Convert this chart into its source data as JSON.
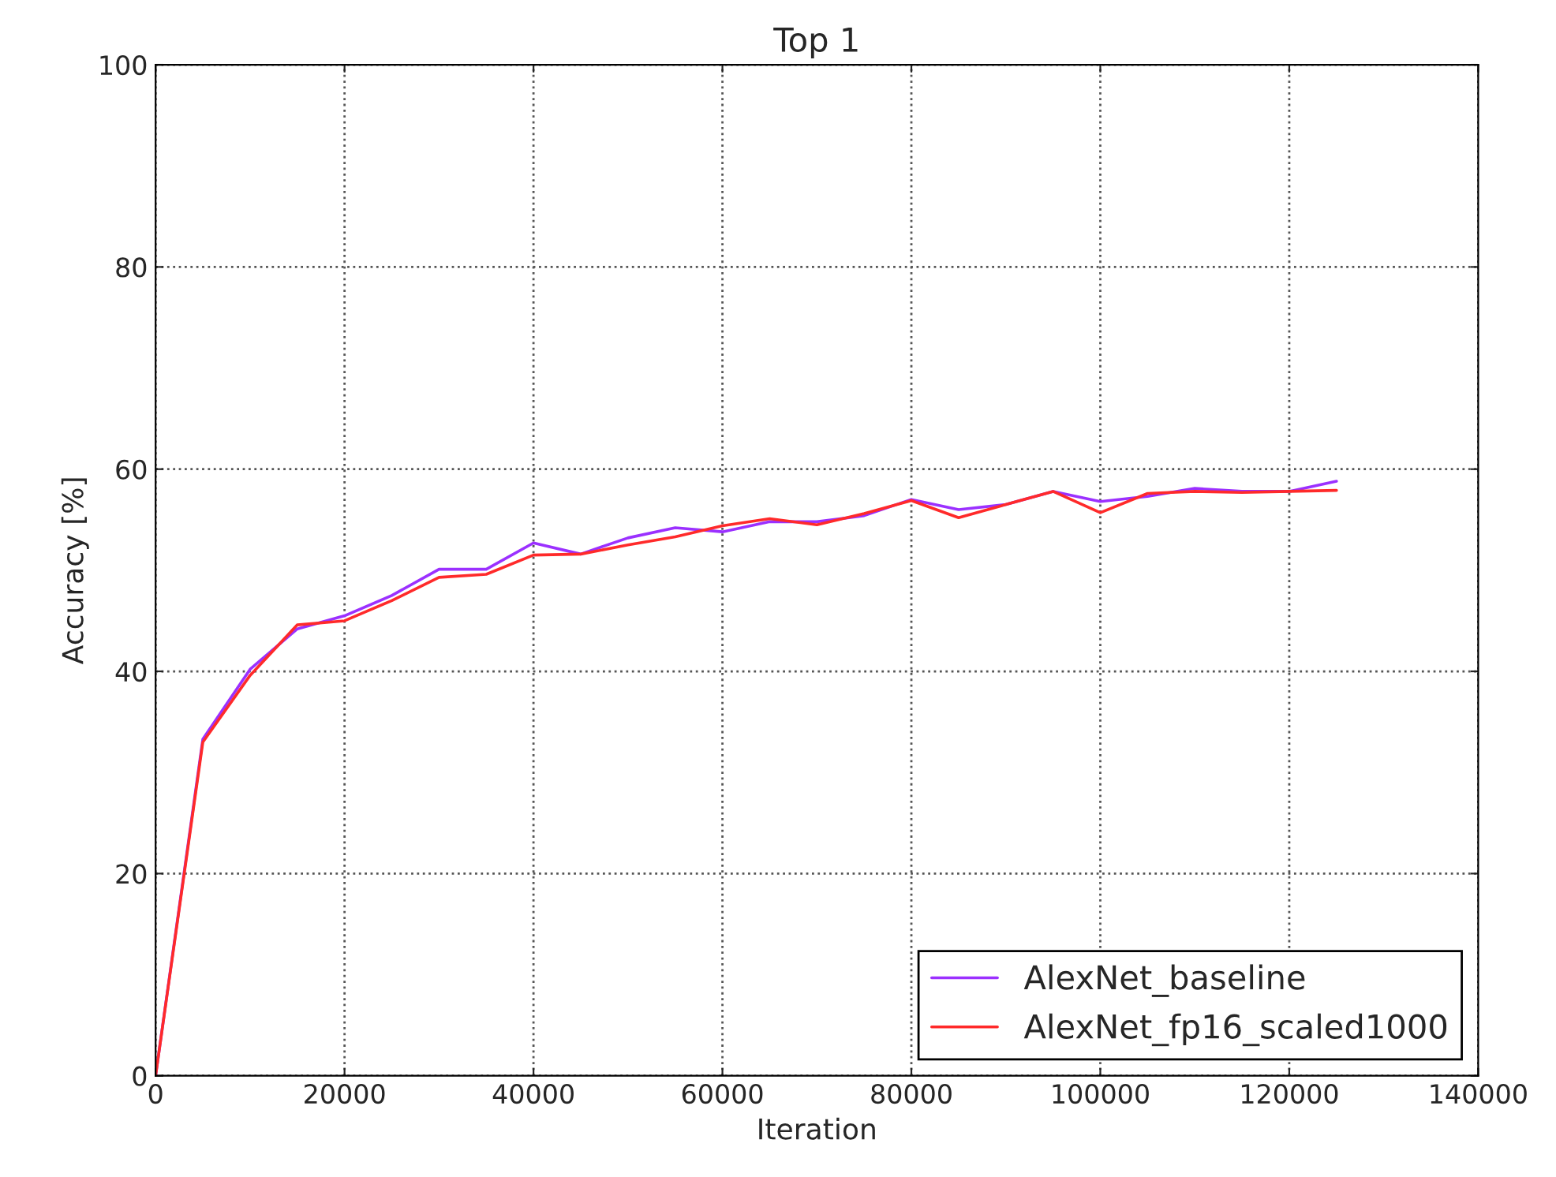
{
  "chart_data": {
    "type": "line",
    "title": "Top 1",
    "xlabel": "Iteration",
    "ylabel": "Accuracy [%]",
    "x": [
      0,
      5000,
      10000,
      15000,
      20000,
      25000,
      30000,
      35000,
      40000,
      45000,
      50000,
      55000,
      60000,
      65000,
      70000,
      75000,
      80000,
      85000,
      90000,
      95000,
      100000,
      105000,
      110000,
      115000,
      120000,
      125000
    ],
    "series": [
      {
        "name": "AlexNet_baseline",
        "color": "#9b30ff",
        "values": [
          0,
          33.3,
          40.2,
          44.2,
          45.5,
          47.5,
          50.1,
          50.1,
          52.7,
          51.6,
          53.2,
          54.2,
          53.8,
          54.8,
          54.8,
          55.4,
          57.0,
          56.0,
          56.5,
          57.8,
          56.8,
          57.3,
          58.1,
          57.8,
          57.8,
          58.8
        ]
      },
      {
        "name": "AlexNet_fp16_scaled1000",
        "color": "#ff2a2a",
        "values": [
          0,
          33.0,
          39.6,
          44.6,
          45.0,
          47.0,
          49.3,
          49.6,
          51.5,
          51.6,
          52.5,
          53.3,
          54.4,
          55.1,
          54.5,
          55.6,
          56.9,
          55.2,
          56.5,
          57.8,
          55.7,
          57.6,
          57.8,
          57.7,
          57.8,
          57.9
        ]
      }
    ],
    "xlim": [
      0,
      140000
    ],
    "xticks": [
      0,
      20000,
      40000,
      60000,
      80000,
      100000,
      120000,
      140000
    ],
    "ylim": [
      0,
      100
    ],
    "yticks": [
      0,
      20,
      40,
      60,
      80,
      100
    ],
    "grid": true,
    "legend": "bottom right",
    "line_style": "solid",
    "marker": "none"
  }
}
